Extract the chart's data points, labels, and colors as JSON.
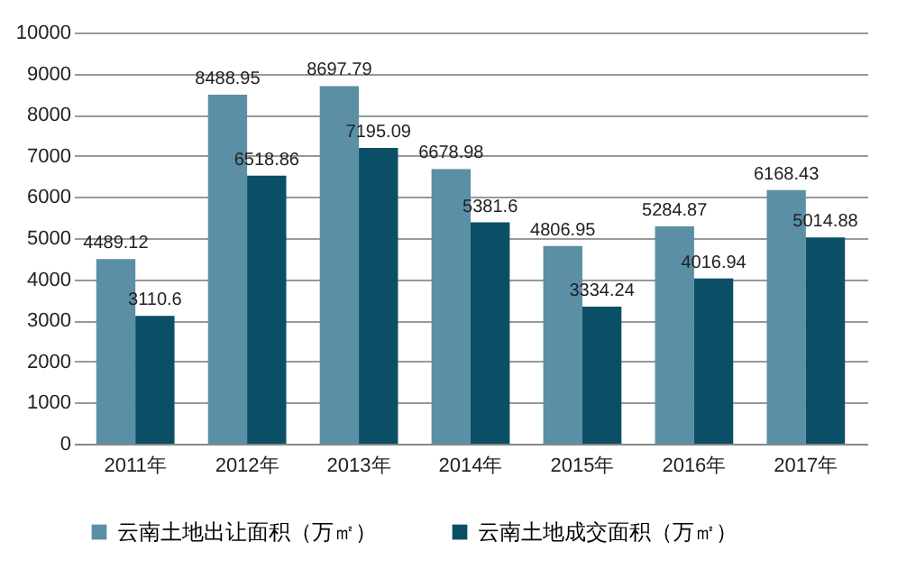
{
  "chart_data": {
    "type": "bar",
    "categories": [
      "2011年",
      "2012年",
      "2013年",
      "2014年",
      "2015年",
      "2016年",
      "2017年"
    ],
    "series": [
      {
        "name": "云南土地出让面积（万㎡）",
        "color": "#5b8fa5",
        "values": [
          4489.12,
          8488.95,
          8697.79,
          6678.98,
          4806.95,
          5284.87,
          6168.43
        ]
      },
      {
        "name": "云南土地成交面积（万㎡）",
        "color": "#0b4f66",
        "values": [
          3110.6,
          6518.86,
          7195.09,
          5381.6,
          3334.24,
          4016.94,
          5014.88
        ]
      }
    ],
    "ylim": [
      0,
      10000
    ],
    "yticks": [
      0,
      1000,
      2000,
      3000,
      4000,
      5000,
      6000,
      7000,
      8000,
      9000,
      10000
    ],
    "grid": "y",
    "legend": "bottom",
    "data_labels": true
  }
}
